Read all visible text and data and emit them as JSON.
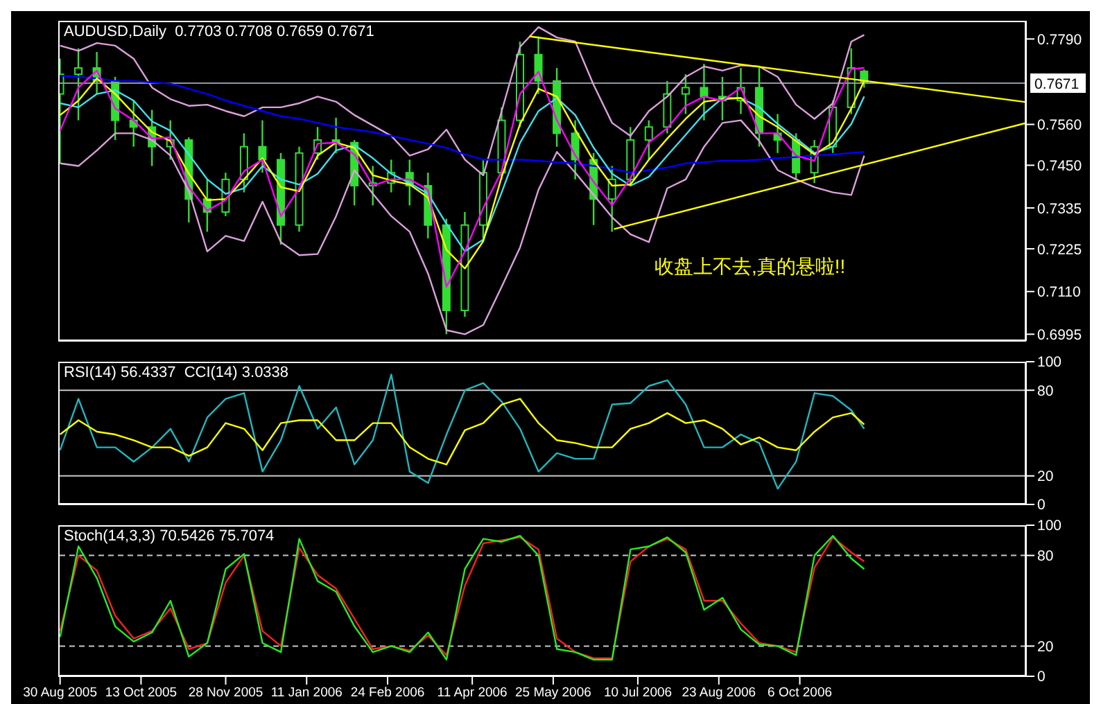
{
  "chart_data": [
    {
      "type": "candlestick",
      "title": "AUDUSD,Daily  0.7703 0.7708 0.7659 0.7671",
      "color": "#33dd33",
      "x": [
        "2005-08-30",
        "2005-09-09",
        "2005-09-19",
        "2005-09-29",
        "2005-10-09",
        "2005-10-19",
        "2005-10-29",
        "2005-11-08",
        "2005-11-18",
        "2005-11-28",
        "2005-12-08",
        "2005-12-18",
        "2005-12-28",
        "2006-01-07",
        "2006-01-17",
        "2006-01-27",
        "2006-02-06",
        "2006-02-16",
        "2006-02-26",
        "2006-03-08",
        "2006-03-18",
        "2006-03-28",
        "2006-04-07",
        "2006-04-17",
        "2006-04-27",
        "2006-05-07",
        "2006-05-17",
        "2006-05-27",
        "2006-06-06",
        "2006-06-16",
        "2006-06-26",
        "2006-07-06",
        "2006-07-16",
        "2006-07-26",
        "2006-08-05",
        "2006-08-15",
        "2006-08-25",
        "2006-09-04",
        "2006-09-14",
        "2006-09-24",
        "2006-10-04",
        "2006-10-14",
        "2006-10-24",
        "2006-11-03",
        "2006-11-10"
      ],
      "ohlc": [
        [
          0.7642,
          0.7737,
          0.7455,
          0.7695
        ],
        [
          0.7695,
          0.7765,
          0.7571,
          0.7712
        ],
        [
          0.7712,
          0.7755,
          0.7642,
          0.7677
        ],
        [
          0.7677,
          0.7688,
          0.7518,
          0.7571
        ],
        [
          0.7571,
          0.7624,
          0.75,
          0.7553
        ],
        [
          0.7553,
          0.7599,
          0.7448,
          0.75
        ],
        [
          0.75,
          0.7571,
          0.7465,
          0.7518
        ],
        [
          0.7518,
          0.7525,
          0.7296,
          0.7359
        ],
        [
          0.7359,
          0.7412,
          0.7271,
          0.7324
        ],
        [
          0.7324,
          0.743,
          0.7313,
          0.7412
        ],
        [
          0.7412,
          0.7536,
          0.7377,
          0.75
        ],
        [
          0.75,
          0.7571,
          0.743,
          0.7465
        ],
        [
          0.7465,
          0.7483,
          0.7236,
          0.7289
        ],
        [
          0.7289,
          0.75,
          0.7271,
          0.7483
        ],
        [
          0.7483,
          0.7553,
          0.7465,
          0.7518
        ],
        [
          0.7518,
          0.7578,
          0.7483,
          0.7511
        ],
        [
          0.7511,
          0.7518,
          0.7342,
          0.7395
        ],
        [
          0.7395,
          0.7448,
          0.7342,
          0.7402
        ],
        [
          0.7402,
          0.7465,
          0.7377,
          0.743
        ],
        [
          0.743,
          0.7465,
          0.7342,
          0.7395
        ],
        [
          0.7395,
          0.743,
          0.7253,
          0.7289
        ],
        [
          0.7289,
          0.7306,
          0.6995,
          0.7059
        ],
        [
          0.7059,
          0.7324,
          0.7042,
          0.7289
        ],
        [
          0.7289,
          0.7465,
          0.7253,
          0.743
        ],
        [
          0.743,
          0.7606,
          0.7412,
          0.7571
        ],
        [
          0.7571,
          0.7783,
          0.7553,
          0.7748
        ],
        [
          0.7748,
          0.7797,
          0.7642,
          0.7677
        ],
        [
          0.7677,
          0.7712,
          0.75,
          0.7536
        ],
        [
          0.7536,
          0.7571,
          0.7412,
          0.7465
        ],
        [
          0.7465,
          0.7483,
          0.7289,
          0.7359
        ],
        [
          0.7359,
          0.7448,
          0.7271,
          0.7412
        ],
        [
          0.7412,
          0.7553,
          0.7395,
          0.7518
        ],
        [
          0.7518,
          0.7571,
          0.7465,
          0.7553
        ],
        [
          0.7553,
          0.7677,
          0.7536,
          0.7642
        ],
        [
          0.7642,
          0.7695,
          0.7588,
          0.7659
        ],
        [
          0.7659,
          0.7723,
          0.7571,
          0.7635
        ],
        [
          0.7635,
          0.7688,
          0.7571,
          0.7624
        ],
        [
          0.7624,
          0.7712,
          0.7588,
          0.7659
        ],
        [
          0.7659,
          0.7712,
          0.75,
          0.7536
        ],
        [
          0.7536,
          0.7588,
          0.7483,
          0.7518
        ],
        [
          0.7518,
          0.7536,
          0.7412,
          0.743
        ],
        [
          0.743,
          0.7518,
          0.7402,
          0.75
        ],
        [
          0.75,
          0.7624,
          0.7483,
          0.7606
        ],
        [
          0.7606,
          0.7765,
          0.7588,
          0.7712
        ],
        [
          0.7703,
          0.7708,
          0.7659,
          0.7671
        ]
      ],
      "series": [
        {
          "type": "line",
          "color": "#dda0dd",
          "values": [
            0.7772,
            0.7758,
            0.7779,
            0.7772,
            0.7737,
            0.7659,
            0.7628,
            0.761,
            0.7613,
            0.7596,
            0.7582,
            0.7606,
            0.7606,
            0.7617,
            0.7635,
            0.7621,
            0.7585,
            0.7557,
            0.7529,
            0.7476,
            0.7493,
            0.7546,
            0.7465,
            0.7423,
            0.7596,
            0.7769,
            0.7822,
            0.7794,
            0.7783,
            0.7666,
            0.7564,
            0.7529,
            0.7596,
            0.7635,
            0.7688,
            0.7716,
            0.7705,
            0.7719,
            0.7716,
            0.7688,
            0.7613,
            0.7575,
            0.7617,
            0.7783,
            0.7801
          ]
        },
        {
          "type": "line",
          "color": "#dda0dd",
          "values": [
            0.7455,
            0.7448,
            0.749,
            0.7536,
            0.7536,
            0.7518,
            0.7476,
            0.738,
            0.7218,
            0.726,
            0.7246,
            0.7352,
            0.7243,
            0.7208,
            0.7211,
            0.7313,
            0.7437,
            0.7373,
            0.7313,
            0.7271,
            0.7158,
            0.7006,
            0.6995,
            0.702,
            0.7123,
            0.7229,
            0.7384,
            0.7486,
            0.743,
            0.737,
            0.731,
            0.7264,
            0.7243,
            0.7388,
            0.7412,
            0.75,
            0.7564,
            0.7571,
            0.7515,
            0.7437,
            0.7412,
            0.7391,
            0.7377,
            0.737,
            0.7476
          ]
        },
        {
          "type": "line",
          "color": "#0000ff",
          "values": [
            0.7691,
            0.7688,
            0.7684,
            0.7677,
            0.7677,
            0.7673,
            0.767,
            0.7656,
            0.7642,
            0.7624,
            0.761,
            0.7596,
            0.7582,
            0.7575,
            0.7564,
            0.7553,
            0.7546,
            0.7539,
            0.7529,
            0.7518,
            0.7508,
            0.7497,
            0.7479,
            0.7465,
            0.7465,
            0.7465,
            0.7462,
            0.7458,
            0.7455,
            0.7448,
            0.7441,
            0.743,
            0.7437,
            0.7444,
            0.7455,
            0.7458,
            0.7462,
            0.7462,
            0.7465,
            0.7469,
            0.7472,
            0.7476,
            0.7479,
            0.7483,
            0.7486
          ]
        },
        {
          "type": "line",
          "color": "#40e0f0",
          "values": [
            0.7617,
            0.7606,
            0.7642,
            0.7652,
            0.7624,
            0.7568,
            0.7543,
            0.7479,
            0.7412,
            0.7373,
            0.7388,
            0.7448,
            0.7412,
            0.7398,
            0.7427,
            0.749,
            0.7504,
            0.7469,
            0.7427,
            0.7402,
            0.7373,
            0.7292,
            0.7218,
            0.725,
            0.7377,
            0.7511,
            0.7596,
            0.7631,
            0.7585,
            0.7497,
            0.7427,
            0.7395,
            0.7419,
            0.7476,
            0.7532,
            0.7589,
            0.7631,
            0.7631,
            0.7606,
            0.7561,
            0.7522,
            0.7483,
            0.75,
            0.7561,
            0.7635
          ]
        },
        {
          "type": "line",
          "color": "#ffff00",
          "values": [
            0.7585,
            0.7624,
            0.7684,
            0.7642,
            0.7589,
            0.7539,
            0.7515,
            0.7427,
            0.7356,
            0.7359,
            0.7412,
            0.7469,
            0.7391,
            0.738,
            0.7476,
            0.7511,
            0.7497,
            0.7423,
            0.7409,
            0.7398,
            0.7363,
            0.7222,
            0.7172,
            0.7246,
            0.7419,
            0.7561,
            0.7656,
            0.7635,
            0.7546,
            0.7462,
            0.7395,
            0.7398,
            0.7465,
            0.7522,
            0.7575,
            0.7621,
            0.7628,
            0.7631,
            0.7582,
            0.7553,
            0.7515,
            0.7479,
            0.7511,
            0.7603,
            0.7677
          ]
        },
        {
          "type": "line",
          "color": "#ff00ff",
          "values": [
            0.7543,
            0.7659,
            0.7705,
            0.7603,
            0.7571,
            0.7522,
            0.7525,
            0.7391,
            0.7328,
            0.7356,
            0.7434,
            0.7465,
            0.7313,
            0.7388,
            0.7508,
            0.7511,
            0.7479,
            0.7395,
            0.7412,
            0.7412,
            0.7384,
            0.7123,
            0.7218,
            0.7335,
            0.7434,
            0.7642,
            0.7702,
            0.7571,
            0.7476,
            0.7405,
            0.7342,
            0.7416,
            0.7511,
            0.755,
            0.761,
            0.7635,
            0.7624,
            0.7659,
            0.7536,
            0.7536,
            0.7476,
            0.7462,
            0.7606,
            0.7709,
            0.7712
          ]
        },
        {
          "type": "line",
          "color": "#ffff00",
          "x": [
            "2006-05-12",
            "2007-02-06"
          ],
          "values": [
            0.7797,
            0.762
          ]
        },
        {
          "type": "line",
          "color": "#ffff00",
          "x": [
            "2006-06-27",
            "2007-02-06"
          ],
          "values": [
            0.7278,
            0.7564
          ]
        }
      ],
      "xlim": [
        "2005-08-29",
        "2007-02-06"
      ],
      "ylim": [
        0.6977,
        0.7839
      ],
      "yticks": [
        {
          "value": 0.779,
          "label": "0.7790"
        },
        {
          "value": 0.756,
          "label": "0.7560"
        },
        {
          "value": 0.745,
          "label": "0.7450"
        },
        0.7335,
        0.7225,
        {
          "value": 0.711,
          "label": "0.7110"
        },
        0.6995
      ],
      "ref_lines": [
        {
          "axis": "y",
          "value": 0.7671,
          "label": "0.7671",
          "color": "#8c98a4"
        }
      ],
      "annotations": [
        "收盘上不去,真的悬啦!!"
      ],
      "tick_labels": "y"
    },
    {
      "type": "line",
      "title": "RSI(14) 56.4337  CCI(14) 3.0338",
      "x": [
        "2005-08-30",
        "2005-09-09",
        "2005-09-19",
        "2005-09-29",
        "2005-10-09",
        "2005-10-19",
        "2005-10-29",
        "2005-11-08",
        "2005-11-18",
        "2005-11-28",
        "2005-12-08",
        "2005-12-18",
        "2005-12-28",
        "2006-01-07",
        "2006-01-17",
        "2006-01-27",
        "2006-02-06",
        "2006-02-16",
        "2006-02-26",
        "2006-03-08",
        "2006-03-18",
        "2006-03-28",
        "2006-04-07",
        "2006-04-17",
        "2006-04-27",
        "2006-05-07",
        "2006-05-17",
        "2006-05-27",
        "2006-06-06",
        "2006-06-16",
        "2006-06-26",
        "2006-07-06",
        "2006-07-16",
        "2006-07-26",
        "2006-08-05",
        "2006-08-15",
        "2006-08-25",
        "2006-09-04",
        "2006-09-14",
        "2006-09-24",
        "2006-10-04",
        "2006-10-14",
        "2006-10-24",
        "2006-11-03",
        "2006-11-10"
      ],
      "series": [
        {
          "color": "#20b8c0",
          "values": [
            38,
            74,
            40,
            40,
            30,
            40,
            53,
            30,
            61,
            74,
            78,
            23,
            45,
            83,
            53,
            68,
            28,
            45,
            91,
            23,
            15,
            49,
            80,
            85,
            72,
            53,
            23,
            36,
            32,
            32,
            70,
            71,
            83,
            87,
            70,
            40,
            40,
            49,
            43,
            11,
            30,
            78,
            76,
            66,
            53
          ]
        },
        {
          "color": "#ffff00",
          "values": [
            49,
            59,
            51,
            49,
            45,
            40,
            40,
            34,
            40,
            57,
            53,
            38,
            57,
            59,
            59,
            45,
            45,
            57,
            57,
            40,
            32,
            28,
            52,
            57,
            70,
            74,
            57,
            45,
            43,
            40,
            40,
            53,
            57,
            64,
            57,
            59,
            53,
            42,
            47,
            40,
            38,
            51,
            61,
            64,
            56
          ]
        }
      ],
      "xlim": [
        "2005-08-29",
        "2007-02-06"
      ],
      "ylim": [
        0,
        100
      ],
      "yticks": [
        0,
        20,
        80,
        100
      ],
      "ref_lines": [
        {
          "axis": "y",
          "value": 80,
          "color": "#c8c8c8"
        },
        {
          "axis": "y",
          "value": 20,
          "color": "#c8c8c8"
        }
      ],
      "tick_labels": "y"
    },
    {
      "type": "line",
      "title": "Stoch(14,3,3) 70.5426 75.7074",
      "x": [
        "2005-08-30",
        "2005-09-09",
        "2005-09-19",
        "2005-09-29",
        "2005-10-09",
        "2005-10-19",
        "2005-10-29",
        "2005-11-08",
        "2005-11-18",
        "2005-11-28",
        "2005-12-08",
        "2005-12-18",
        "2005-12-28",
        "2006-01-07",
        "2006-01-17",
        "2006-01-27",
        "2006-02-06",
        "2006-02-16",
        "2006-02-26",
        "2006-03-08",
        "2006-03-18",
        "2006-03-28",
        "2006-04-07",
        "2006-04-17",
        "2006-04-27",
        "2006-05-07",
        "2006-05-17",
        "2006-05-27",
        "2006-06-06",
        "2006-06-16",
        "2006-06-26",
        "2006-07-06",
        "2006-07-16",
        "2006-07-26",
        "2006-08-05",
        "2006-08-15",
        "2006-08-25",
        "2006-09-04",
        "2006-09-14",
        "2006-09-24",
        "2006-10-04",
        "2006-10-14",
        "2006-10-24",
        "2006-11-03",
        "2006-11-10"
      ],
      "series": [
        {
          "color": "#ff2020",
          "values": [
            30,
            80,
            70,
            40,
            25,
            30,
            45,
            18,
            22,
            62,
            80,
            30,
            20,
            85,
            67,
            58,
            38,
            18,
            20,
            17,
            27,
            14,
            60,
            88,
            90,
            92,
            84,
            25,
            16,
            12,
            12,
            76,
            86,
            91,
            84,
            50,
            50,
            35,
            22,
            20,
            16,
            72,
            92,
            82,
            76
          ]
        },
        {
          "color": "#22ee22",
          "values": [
            26,
            86,
            65,
            33,
            23,
            29,
            50,
            13,
            22,
            71,
            81,
            22,
            16,
            91,
            63,
            56,
            33,
            16,
            20,
            16,
            29,
            11,
            71,
            91,
            89,
            93,
            80,
            18,
            16,
            11,
            11,
            84,
            86,
            92,
            82,
            44,
            52,
            31,
            21,
            20,
            14,
            80,
            93,
            78,
            71
          ]
        }
      ],
      "xlim": [
        "2005-08-29",
        "2007-02-06"
      ],
      "xticks": [
        {
          "value": "2005-08-30",
          "label": "30 Aug 2005"
        },
        {
          "value": "2005-10-13",
          "label": "13 Oct 2005"
        },
        {
          "value": "2005-11-28",
          "label": "28 Nov 2005"
        },
        {
          "value": "2006-01-11",
          "label": "11 Jan 2006"
        },
        {
          "value": "2006-02-24",
          "label": "24 Feb 2006"
        },
        {
          "value": "2006-04-11",
          "label": "11 Apr 2006"
        },
        {
          "value": "2006-05-25",
          "label": "25 May 2006"
        },
        {
          "value": "2006-07-10",
          "label": "10 Jul 2006"
        },
        {
          "value": "2006-08-23",
          "label": "23 Aug 2006"
        },
        {
          "value": "2006-10-06",
          "label": "6 Oct 2006"
        }
      ],
      "ylim": [
        0,
        100
      ],
      "yticks": [
        0,
        20,
        80,
        100
      ],
      "ref_lines": [
        {
          "axis": "y",
          "value": 80,
          "color": "#c8c8c8",
          "line_style": "dashed"
        },
        {
          "axis": "y",
          "value": 20,
          "color": "#c8c8c8",
          "line_style": "dashed"
        }
      ]
    }
  ]
}
